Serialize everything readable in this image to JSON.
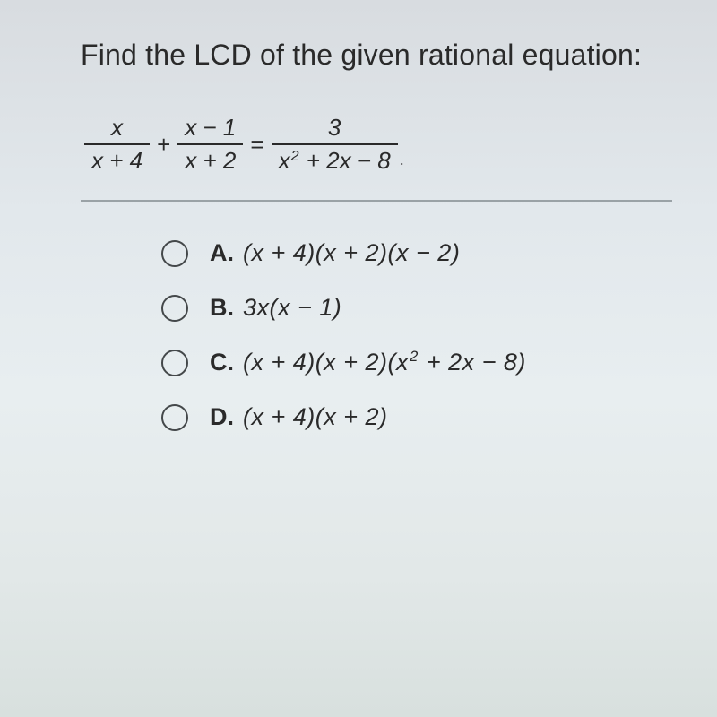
{
  "question": "Find the LCD of the given rational equation:",
  "equation": {
    "term1": {
      "num": "x",
      "den": "x + 4"
    },
    "op1": "+",
    "term2": {
      "num": "x − 1",
      "den": "x + 2"
    },
    "op2": "=",
    "term3": {
      "num": "3",
      "den_pre": "x",
      "den_exp": "2",
      "den_post": " + 2x − 8"
    },
    "trail": "."
  },
  "options": [
    {
      "label": "A.",
      "expr": "(x + 4)(x + 2)(x − 2)",
      "has_sup": false
    },
    {
      "label": "B.",
      "expr": "3x(x − 1)",
      "has_sup": false
    },
    {
      "label": "C.",
      "pre": "(x + 4)(x + 2)(x",
      "exp": "2",
      "post": " + 2x − 8)",
      "has_sup": true
    },
    {
      "label": "D.",
      "expr": "(x + 4)(x + 2)",
      "has_sup": false
    }
  ],
  "colors": {
    "text": "#2a2a2a",
    "divider": "#9aa2a6",
    "radio_border": "#44484a"
  }
}
